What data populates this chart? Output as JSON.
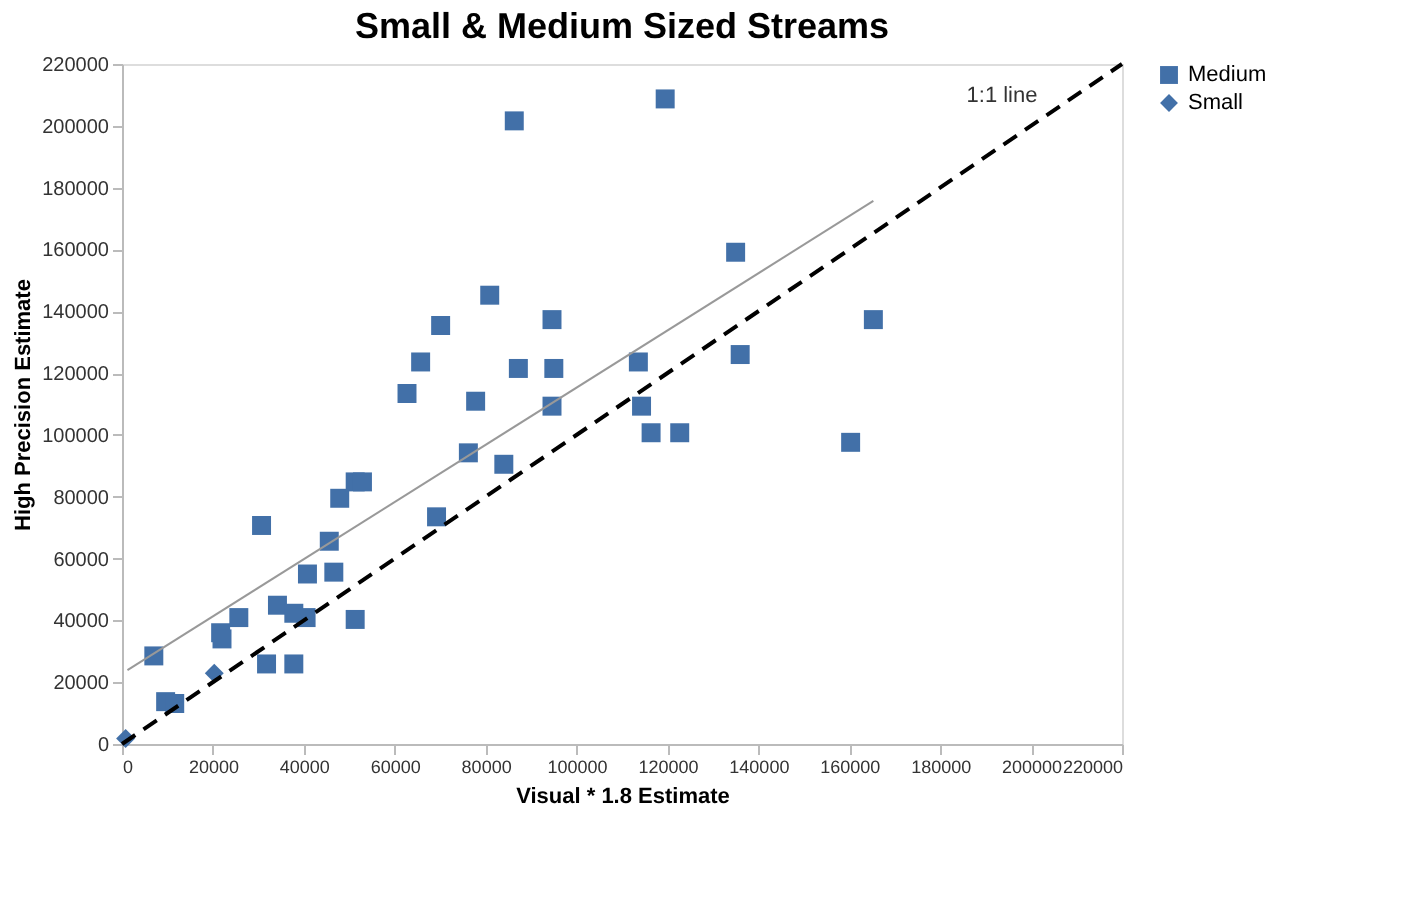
{
  "chart_data": {
    "type": "scatter",
    "title": "Small & Medium Sized Streams",
    "xlabel": "Visual * 1.8 Estimate",
    "ylabel": "High Precision Estimate",
    "xlim": [
      0,
      220000
    ],
    "ylim": [
      0,
      220000
    ],
    "xticks": [
      0,
      20000,
      40000,
      60000,
      80000,
      100000,
      120000,
      140000,
      160000,
      180000,
      200000,
      220000
    ],
    "yticks": [
      0,
      20000,
      40000,
      60000,
      80000,
      100000,
      120000,
      140000,
      160000,
      180000,
      200000,
      220000
    ],
    "grid": false,
    "legend": "right",
    "annotations": [
      "1:1 line"
    ],
    "series": [
      {
        "name": "Medium",
        "color": "#4270a8",
        "marker": "square",
        "x": [
          7000,
          9600,
          11600,
          21700,
          22000,
          25700,
          30700,
          31800,
          34200,
          37800,
          37800,
          40500,
          40800,
          45600,
          46600,
          47900,
          51300,
          51300,
          52900,
          62700,
          65700,
          69200,
          70100,
          76200,
          77800,
          80900,
          84000,
          86300,
          87200,
          94600,
          95000,
          94600,
          113600,
          114300,
          116400,
          122700,
          119500,
          135000,
          136000,
          165300,
          160300
        ],
        "values": [
          28500,
          13700,
          13100,
          36000,
          34000,
          40900,
          70700,
          25900,
          44900,
          42300,
          25900,
          40900,
          55000,
          65600,
          55600,
          79500,
          40300,
          84800,
          84800,
          113400,
          123600,
          73500,
          135400,
          94200,
          110900,
          145200,
          90500,
          201600,
          121500,
          137300,
          121500,
          109300,
          123600,
          109300,
          100700,
          100700,
          208700,
          159100,
          126000,
          137300,
          97600
        ]
      },
      {
        "name": "Small",
        "color": "#4270a8",
        "marker": "diamond",
        "x": [
          800,
          20300
        ],
        "values": [
          1800,
          22900
        ]
      },
      {
        "color": "#999999",
        "type": "line",
        "marker": "none",
        "line_style": "solid",
        "x": [
          1200,
          165300
        ],
        "values": [
          23900,
          175700
        ]
      },
      {
        "color": "#000000",
        "type": "line",
        "marker": "none",
        "line_style": "dashed",
        "x": [
          0,
          220000
        ],
        "values": [
          0,
          220000
        ]
      }
    ]
  }
}
